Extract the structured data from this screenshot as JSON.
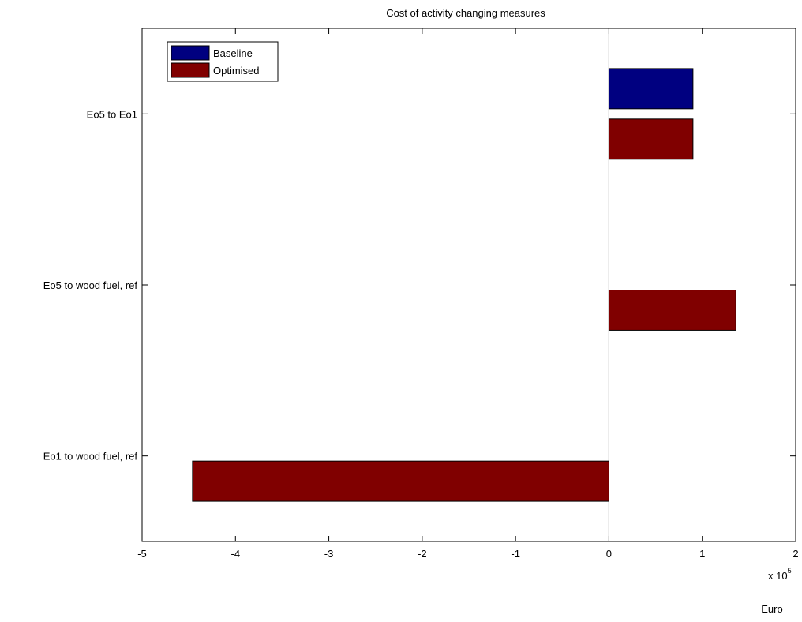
{
  "chart_data": {
    "type": "bar",
    "orientation": "horizontal",
    "title": "Cost of activity changing measures",
    "xlabel": "Euro",
    "ylabel": "",
    "x_multiplier_label": "x 10",
    "x_multiplier_exponent": "5",
    "xlim": [
      -500000,
      200000
    ],
    "xticks": [
      -500000,
      -400000,
      -300000,
      -200000,
      -100000,
      0,
      100000,
      200000
    ],
    "xtick_labels": [
      "-5",
      "-4",
      "-3",
      "-2",
      "-1",
      "0",
      "1",
      "2"
    ],
    "categories": [
      "Eo5 to Eo1",
      "Eo5 to wood fuel, ref",
      "Eo1 to wood fuel, ref"
    ],
    "series": [
      {
        "name": "Baseline",
        "color": "#000080",
        "values": [
          90000,
          0,
          0
        ]
      },
      {
        "name": "Optimised",
        "color": "#800000",
        "values": [
          90000,
          136000,
          -446000
        ]
      }
    ],
    "legend_position": "top-left",
    "grid": false
  }
}
